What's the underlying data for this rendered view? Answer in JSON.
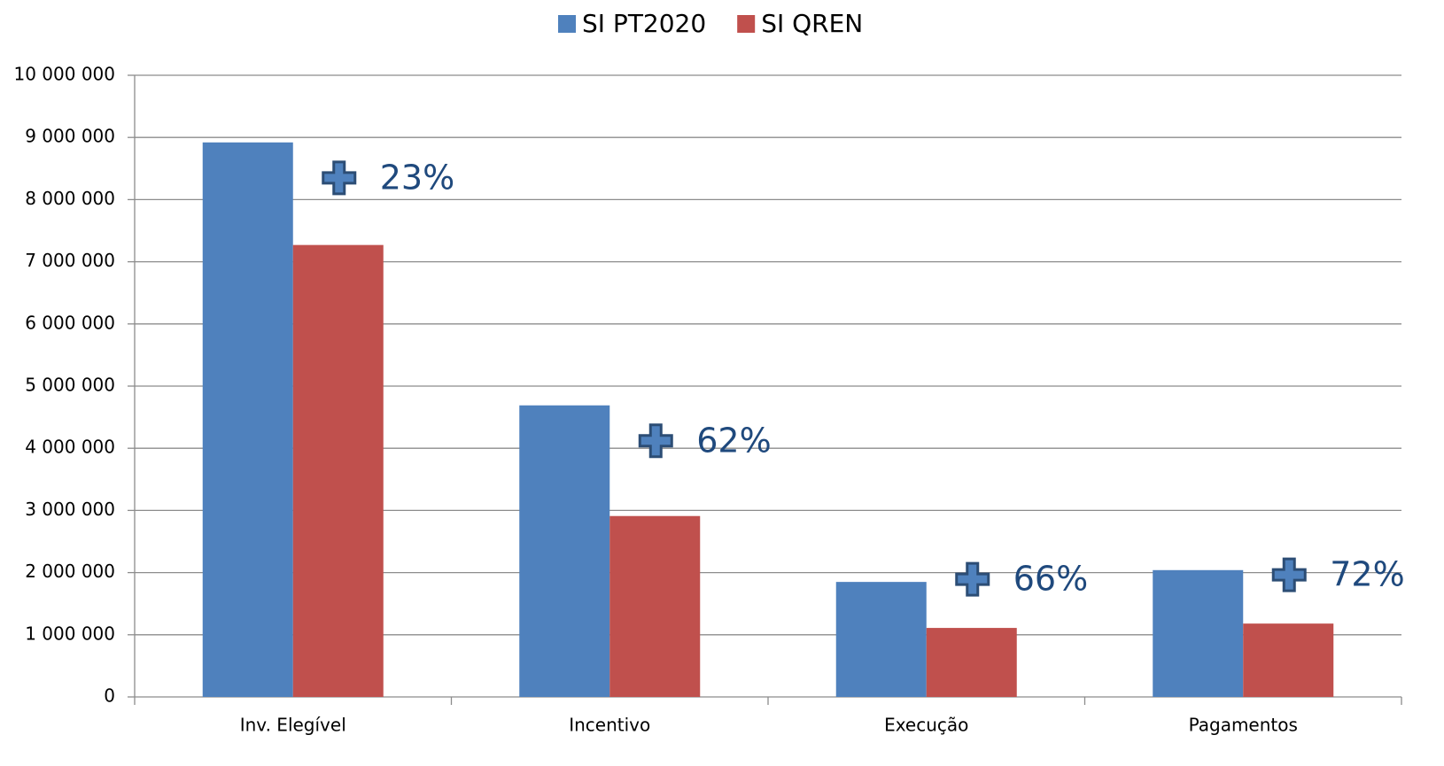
{
  "chart_data": {
    "type": "bar",
    "categories": [
      "Inv. Elegível",
      "Incentivo",
      "Execução",
      "Pagamentos"
    ],
    "series": [
      {
        "name": "SI PT2020",
        "color": "#4f81bd",
        "values": [
          8920000,
          4690000,
          1850000,
          2040000
        ]
      },
      {
        "name": "SI QREN",
        "color": "#c0504d",
        "values": [
          7270000,
          2910000,
          1110000,
          1180000
        ]
      }
    ],
    "annotations": [
      "23%",
      "62%",
      "66%",
      "72%"
    ],
    "ylim": [
      0,
      10000000
    ],
    "yticks": [
      0,
      {
        "value": 1000000,
        "label": "1 000 000"
      },
      {
        "value": 2000000,
        "label": "2 000 000"
      },
      {
        "value": 3000000,
        "label": "3 000 000"
      },
      {
        "value": 4000000,
        "label": "4 000 000"
      },
      {
        "value": 5000000,
        "label": "5 000 000"
      },
      {
        "value": 6000000,
        "label": "6 000 000"
      },
      {
        "value": 7000000,
        "label": "7 000 000"
      },
      {
        "value": 8000000,
        "label": "8 000 000"
      },
      {
        "value": 9000000,
        "label": "9 000 000"
      },
      {
        "value": 10000000,
        "label": "10 000 000"
      }
    ],
    "grid": true,
    "legend": "top"
  }
}
